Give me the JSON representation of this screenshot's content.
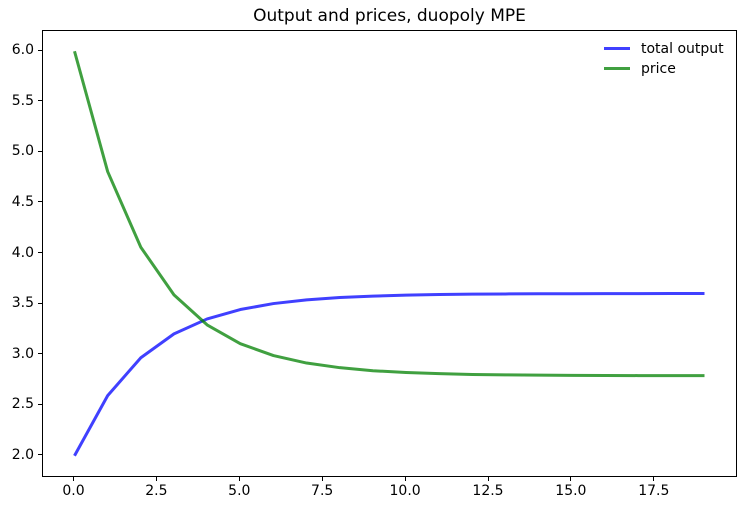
{
  "figure": {
    "background": "#ffffff",
    "spine_color": "#000000",
    "text_color": "#000000"
  },
  "chart_data": {
    "type": "line",
    "title": "Output and prices, duopoly MPE",
    "xlabel": "",
    "ylabel": "",
    "x": [
      0,
      1,
      2,
      3,
      4,
      5,
      6,
      7,
      8,
      9,
      10,
      11,
      12,
      13,
      14,
      15,
      16,
      17,
      18,
      19
    ],
    "series": [
      {
        "name": "total output",
        "color": "#0000ff",
        "opacity": 0.75,
        "values": [
          2.0,
          2.595,
          2.969,
          3.205,
          3.353,
          3.446,
          3.505,
          3.541,
          3.565,
          3.579,
          3.588,
          3.594,
          3.598,
          3.6,
          3.602,
          3.602,
          3.603,
          3.603,
          3.604,
          3.604
        ]
      },
      {
        "name": "price",
        "color": "#008000",
        "opacity": 0.75,
        "values": [
          6.0,
          4.81,
          4.062,
          3.591,
          3.294,
          3.108,
          2.991,
          2.917,
          2.871,
          2.841,
          2.823,
          2.812,
          2.804,
          2.8,
          2.797,
          2.795,
          2.794,
          2.793,
          2.793,
          2.792
        ]
      }
    ],
    "xlim": [
      -0.95,
      19.95
    ],
    "ylim": [
      1.8,
      6.2
    ],
    "xticks": [
      0.0,
      2.5,
      5.0,
      7.5,
      10.0,
      12.5,
      15.0,
      17.5
    ],
    "yticks": [
      2.0,
      2.5,
      3.0,
      3.5,
      4.0,
      4.5,
      5.0,
      5.5,
      6.0
    ],
    "grid": false,
    "legend": {
      "position": "upper right",
      "frame": false,
      "entries": [
        "total output",
        "price"
      ]
    }
  }
}
